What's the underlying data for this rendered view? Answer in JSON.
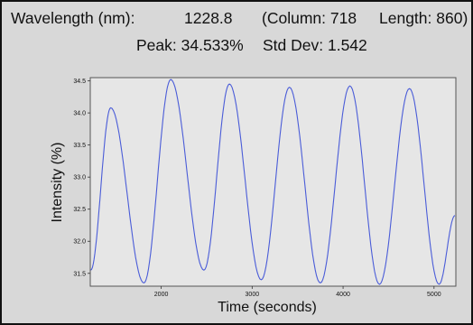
{
  "header": {
    "wavelength_label": "Wavelength (nm):",
    "wavelength_value": "1228.8",
    "column_text": "(Column: 718",
    "length_text": "Length: 860)",
    "peak_text": "Peak: 34.533%",
    "stddev_text": "Std Dev: 1.542"
  },
  "colors": {
    "background": "#d8d8d8",
    "plot_background": "#e6e6e6",
    "line": "#4a5cd8"
  },
  "chart_data": {
    "type": "line",
    "title": "",
    "xlabel": "Time (seconds)",
    "ylabel": "Intensity (%)",
    "xlim": [
      1220,
      5240
    ],
    "ylim": [
      31.3,
      34.55
    ],
    "xticks": [
      2000,
      3000,
      4000,
      5000
    ],
    "xtick_labels": [
      "2000",
      "3000",
      "4000",
      "5000"
    ],
    "yticks": [
      31.5,
      32.0,
      32.5,
      33.0,
      33.5,
      34.0,
      34.5
    ],
    "ytick_labels": [
      "31.5",
      "32.0",
      "32.5",
      "33.0",
      "33.5",
      "34.0",
      "34.5"
    ],
    "grid": false,
    "series": [
      {
        "peaks": [
          {
            "x": 1445,
            "y": 34.08
          },
          {
            "x": 2105,
            "y": 34.52
          },
          {
            "x": 2750,
            "y": 34.45
          },
          {
            "x": 3410,
            "y": 34.4
          },
          {
            "x": 4075,
            "y": 34.42
          },
          {
            "x": 4730,
            "y": 34.38
          }
        ],
        "troughs": [
          {
            "x": 1810,
            "y": 31.35
          },
          {
            "x": 2470,
            "y": 31.55
          },
          {
            "x": 3100,
            "y": 31.4
          },
          {
            "x": 3750,
            "y": 31.35
          },
          {
            "x": 4400,
            "y": 31.33
          },
          {
            "x": 5055,
            "y": 31.33
          }
        ],
        "start": {
          "x": 1225,
          "y": 31.55
        },
        "end": {
          "x": 5230,
          "y": 32.4
        }
      }
    ]
  }
}
